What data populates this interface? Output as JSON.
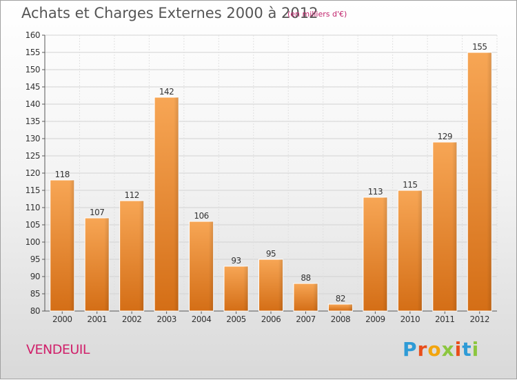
{
  "title": "Achats et Charges Externes 2000 à 2012",
  "subtitle": "(en milliers d'€)",
  "commune": "VENDEUIL",
  "brand": "Proxiti",
  "colors": {
    "bar_light": "#f7a655",
    "bar_dark": "#d46e16",
    "title": "#555555",
    "accent": "#d0206a"
  },
  "chart_data": {
    "type": "bar",
    "categories": [
      "2000",
      "2001",
      "2002",
      "2003",
      "2004",
      "2005",
      "2006",
      "2007",
      "2008",
      "2009",
      "2010",
      "2011",
      "2012"
    ],
    "values": [
      118,
      107,
      112,
      142,
      106,
      93,
      95,
      88,
      82,
      113,
      115,
      129,
      155
    ],
    "ylim": [
      80,
      160
    ],
    "yticks": [
      80,
      85,
      90,
      95,
      100,
      105,
      110,
      115,
      120,
      125,
      130,
      135,
      140,
      145,
      150,
      155,
      160
    ],
    "grid": true,
    "xlabel": "",
    "ylabel": ""
  }
}
